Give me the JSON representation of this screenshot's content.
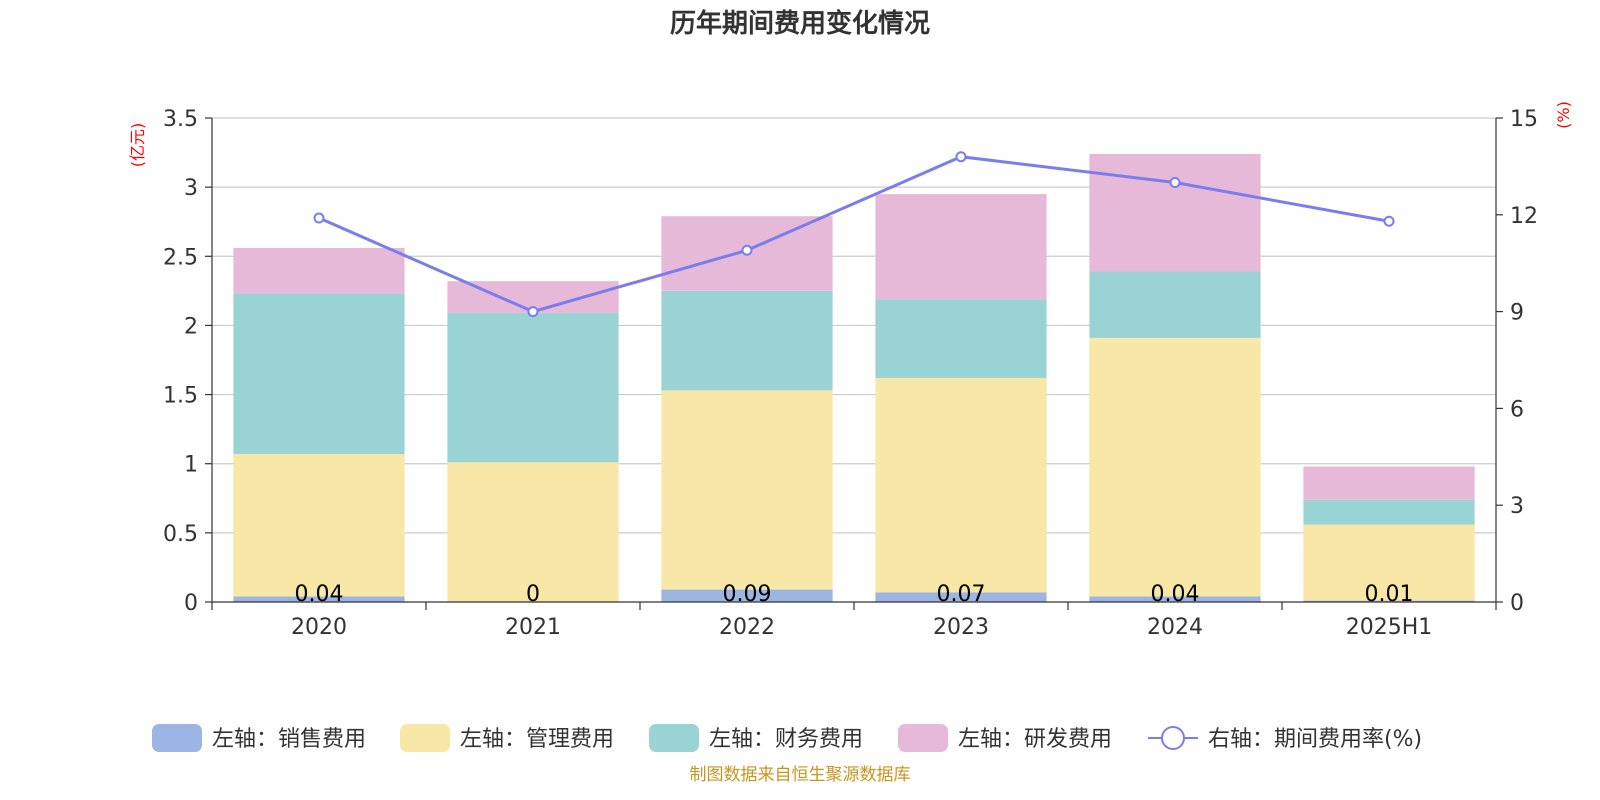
{
  "chart_data": {
    "type": "bar",
    "stacked": true,
    "title": "历年期间费用变化情况",
    "categories": [
      "2020",
      "2021",
      "2022",
      "2023",
      "2024",
      "2025H1"
    ],
    "left_axis": {
      "unit": "(亿元)",
      "ylim": [
        0,
        3.5
      ],
      "ticks": [
        "0",
        "0.5",
        "1",
        "1.5",
        "2",
        "2.5",
        "3",
        "3.5"
      ]
    },
    "right_axis": {
      "unit": "(%)",
      "ylim": [
        0,
        15
      ],
      "ticks": [
        "0",
        "3",
        "6",
        "9",
        "12",
        "15"
      ]
    },
    "series": [
      {
        "name": "左轴：销售费用",
        "axis": "left",
        "color": "#9db5e2",
        "values": [
          0.04,
          0,
          0.09,
          0.07,
          0.04,
          0.01
        ],
        "labels": [
          "0.04",
          "0",
          "0.09",
          "0.07",
          "0.04",
          "0.01"
        ]
      },
      {
        "name": "左轴：管理费用",
        "axis": "left",
        "color": "#f8e7a6",
        "values": [
          1.03,
          1.01,
          1.44,
          1.55,
          1.87,
          0.55
        ]
      },
      {
        "name": "左轴：财务费用",
        "axis": "left",
        "color": "#9ad3d4",
        "values": [
          1.16,
          1.08,
          0.72,
          0.57,
          0.48,
          0.18
        ]
      },
      {
        "name": "左轴：研发费用",
        "axis": "left",
        "color": "#e7b9d8",
        "values": [
          0.33,
          0.23,
          0.54,
          0.76,
          0.85,
          0.24
        ]
      }
    ],
    "line": {
      "name": "右轴：期间费用率(%)",
      "axis": "right",
      "color": "#7a7ded",
      "values": [
        11.9,
        9.0,
        10.9,
        13.8,
        13.0,
        11.8
      ]
    },
    "source": "制图数据来自恒生聚源数据库"
  }
}
